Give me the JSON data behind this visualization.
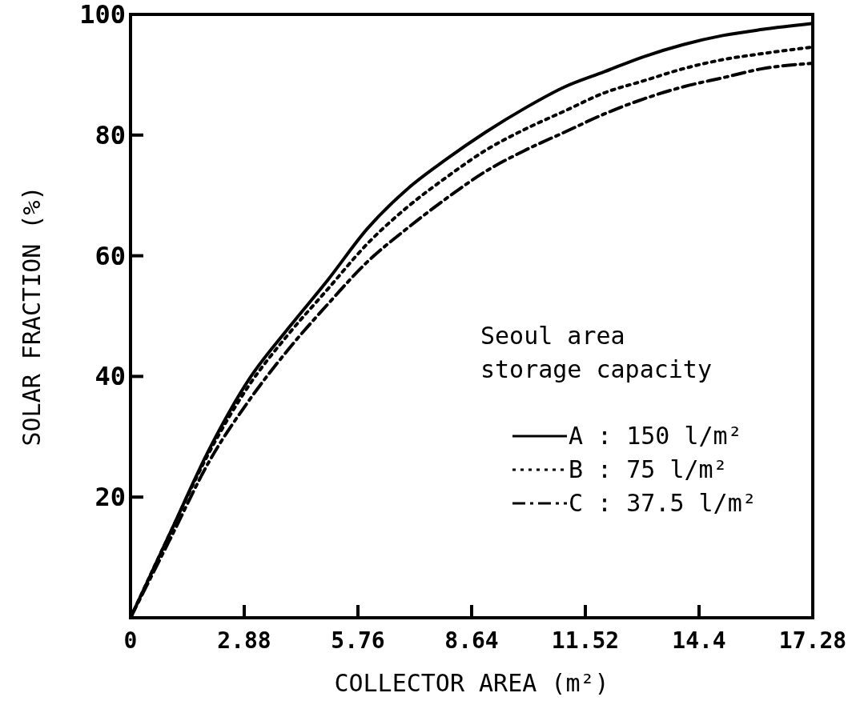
{
  "chart_data": {
    "type": "line",
    "xlabel": "COLLECTOR AREA (m²)",
    "ylabel": "SOLAR FRACTION (%)",
    "legend_title": "Seoul area storage capacity",
    "legend": "bottom right",
    "x": [
      0,
      1,
      2,
      3,
      4,
      5,
      6,
      7,
      8,
      9,
      10,
      11,
      12,
      13,
      14,
      15,
      16,
      17.28
    ],
    "xlim": [
      0,
      17.28
    ],
    "xticks": [
      0,
      2.88,
      5.76,
      8.64,
      11.52,
      14.4,
      17.28
    ],
    "ylim": [
      0,
      100
    ],
    "yticks": [
      20,
      40,
      60,
      80,
      100
    ],
    "grid": false,
    "marker": "none",
    "series": [
      {
        "name": "A : 150 l/m²",
        "color": "#000000",
        "line_style": "solid",
        "values": [
          0,
          14,
          28,
          39.5,
          48,
          56,
          64.5,
          71,
          76,
          80.5,
          84.5,
          88,
          90.5,
          93,
          95,
          96.5,
          97.5,
          98.5
        ]
      },
      {
        "name": "B : 75 l/m²",
        "color": "#000000",
        "line_style": "dotted",
        "values": [
          0,
          14,
          27.5,
          38.5,
          47,
          54.5,
          62,
          68,
          73,
          77.5,
          81,
          84,
          87,
          89,
          91,
          92.5,
          93.5,
          94.6
        ]
      },
      {
        "name": "C : 37.5 l/m²",
        "color": "#000000",
        "line_style": "dashed",
        "values": [
          0,
          13,
          26,
          36,
          44.5,
          52,
          59,
          64.5,
          69.5,
          74,
          77.5,
          80.5,
          83.5,
          86,
          88,
          89.5,
          91,
          91.9
        ]
      }
    ]
  }
}
